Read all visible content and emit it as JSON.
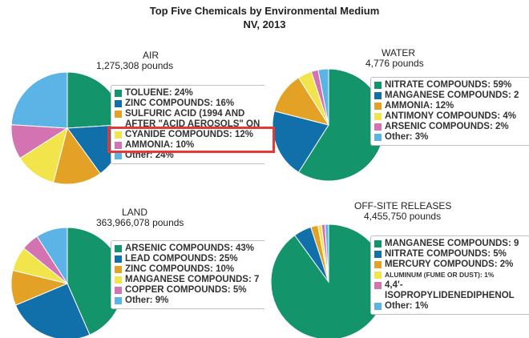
{
  "header": {
    "title": "Top Five Chemicals by Environmental Medium",
    "subtitle": "NV, 2013"
  },
  "panels": [
    {
      "label": "AIR",
      "amount": "1,275,308 pounds",
      "legend": [
        {
          "label": "TOLUENE: 24%",
          "color": "#13946b"
        },
        {
          "label": "ZINC COMPOUNDS: 16%",
          "color": "#1170aa"
        },
        {
          "label": "SULFURIC ACID (1994 AND\nAFTER \"ACID AEROSOLS\" ON",
          "color": "#e3a126"
        },
        {
          "label": "CYANIDE COMPOUNDS: 12%",
          "color": "#f2e54b"
        },
        {
          "label": "AMMONIA: 10%",
          "color": "#d473b2"
        },
        {
          "label": "Other: 24%",
          "color": "#5cb4e6"
        }
      ]
    },
    {
      "label": "WATER",
      "amount": "4,776 pounds",
      "legend": [
        {
          "label": "NITRATE COMPOUNDS: 59%",
          "color": "#13946b"
        },
        {
          "label": "MANGANESE COMPOUNDS: 2",
          "color": "#1170aa"
        },
        {
          "label": "AMMONIA: 12%",
          "color": "#e3a126"
        },
        {
          "label": "ANTIMONY COMPOUNDS: 4%",
          "color": "#f2e54b"
        },
        {
          "label": "ARSENIC COMPOUNDS: 2%",
          "color": "#d473b2"
        },
        {
          "label": "Other: 3%",
          "color": "#5cb4e6"
        }
      ]
    },
    {
      "label": "LAND",
      "amount": "363,966,078 pounds",
      "legend": [
        {
          "label": "ARSENIC COMPOUNDS: 43%",
          "color": "#13946b"
        },
        {
          "label": "LEAD COMPOUNDS: 25%",
          "color": "#1170aa"
        },
        {
          "label": "ZINC COMPOUNDS: 10%",
          "color": "#e3a126"
        },
        {
          "label": "MANGANESE COMPOUNDS: 7",
          "color": "#f2e54b"
        },
        {
          "label": "COPPER COMPOUNDS: 5%",
          "color": "#d473b2"
        },
        {
          "label": "Other: 9%",
          "color": "#5cb4e6"
        }
      ]
    },
    {
      "label": "OFF-SITE RELEASES",
      "amount": "4,455,750 pounds",
      "legend": [
        {
          "label": "MANGANESE COMPOUNDS: 9",
          "color": "#13946b"
        },
        {
          "label": "NITRATE COMPOUNDS: 5%",
          "color": "#1170aa"
        },
        {
          "label": "MERCURY COMPOUNDS: 2%",
          "color": "#e3a126"
        },
        {
          "label": "ALUMINUM (FUME OR DUST): 1%",
          "color": "#f2e54b",
          "small": true
        },
        {
          "label": "4,4'-\nISOPROPYLIDENEDIPHENOL",
          "color": "#d473b2"
        },
        {
          "label": "Other: 1%",
          "color": "#5cb4e6"
        }
      ]
    }
  ],
  "chart_data": [
    {
      "type": "pie",
      "title": "AIR",
      "subtitle": "1,275,308 pounds",
      "categories": [
        "TOLUENE",
        "ZINC COMPOUNDS",
        "SULFURIC ACID (1994 AND AFTER \"ACID AEROSOLS\" ON",
        "CYANIDE COMPOUNDS",
        "AMMONIA",
        "Other"
      ],
      "values": [
        24,
        16,
        14,
        12,
        10,
        24
      ],
      "colors": [
        "#13946b",
        "#1170aa",
        "#e3a126",
        "#f2e54b",
        "#d473b2",
        "#5cb4e6"
      ],
      "legend": "right"
    },
    {
      "type": "pie",
      "title": "WATER",
      "subtitle": "4,776 pounds",
      "categories": [
        "NITRATE COMPOUNDS",
        "MANGANESE COMPOUNDS",
        "AMMONIA",
        "ANTIMONY COMPOUNDS",
        "ARSENIC COMPOUNDS",
        "Other"
      ],
      "values": [
        59,
        20,
        12,
        4,
        2,
        3
      ],
      "colors": [
        "#13946b",
        "#1170aa",
        "#e3a126",
        "#f2e54b",
        "#d473b2",
        "#5cb4e6"
      ],
      "legend": "right"
    },
    {
      "type": "pie",
      "title": "LAND",
      "subtitle": "363,966,078 pounds",
      "categories": [
        "ARSENIC COMPOUNDS",
        "LEAD COMPOUNDS",
        "ZINC COMPOUNDS",
        "MANGANESE COMPOUNDS",
        "COPPER COMPOUNDS",
        "Other"
      ],
      "values": [
        43,
        25,
        10,
        7,
        5,
        9
      ],
      "colors": [
        "#13946b",
        "#1170aa",
        "#e3a126",
        "#f2e54b",
        "#d473b2",
        "#5cb4e6"
      ],
      "legend": "right"
    },
    {
      "type": "pie",
      "title": "OFF-SITE RELEASES",
      "subtitle": "4,455,750 pounds",
      "categories": [
        "MANGANESE COMPOUNDS",
        "NITRATE COMPOUNDS",
        "MERCURY COMPOUNDS",
        "ALUMINUM (FUME OR DUST)",
        "4,4'-ISOPROPYLIDENEDIPHENOL",
        "Other"
      ],
      "values": [
        90,
        5,
        2,
        1,
        1,
        1
      ],
      "colors": [
        "#13946b",
        "#1170aa",
        "#e3a126",
        "#f2e54b",
        "#d473b2",
        "#5cb4e6"
      ],
      "legend": "right"
    }
  ],
  "highlight": {
    "target": "CYANIDE COMPOUNDS: 12%",
    "color": "#e53935"
  }
}
